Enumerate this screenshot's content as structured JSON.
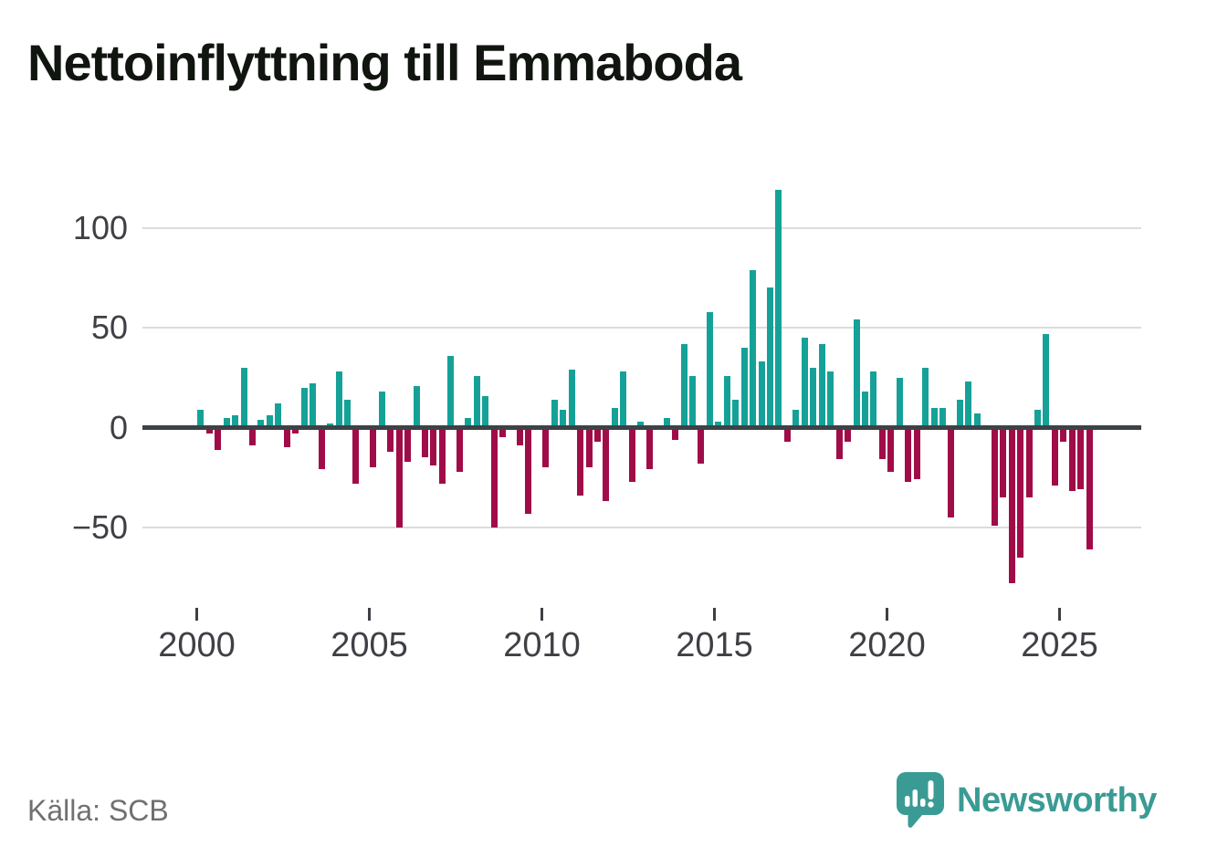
{
  "title": "Nettoinflyttning till Emmaboda",
  "source": "Källa: SCB",
  "brand": {
    "name": "Newsworthy",
    "logo_icon": "speech-bubble-bar-chart-icon"
  },
  "colors": {
    "positive_bar": "#16a198",
    "negative_bar": "#a00c48",
    "brand_teal": "#3a9b94",
    "axis_line": "#3d4247",
    "gridline": "#dcdcdc",
    "tick_text": "#3f4045",
    "title_text": "#10160f",
    "source_text": "#707070"
  },
  "chart_data": {
    "type": "bar",
    "title": "Nettoinflyttning till Emmaboda",
    "frequency": "quarterly",
    "start": "2000-Q1",
    "end": "2025-Q4",
    "xlabel": "",
    "ylabel": "",
    "grid": "horizontal",
    "y_ticks": [
      100,
      50,
      0,
      -50
    ],
    "ylim": [
      -85,
      125
    ],
    "x_tick_years": [
      2000,
      2005,
      2010,
      2015,
      2020,
      2025
    ],
    "x_tick_labels": [
      "2000",
      "2005",
      "2010",
      "2015",
      "2020",
      "2025"
    ],
    "values": [
      9,
      -3,
      -11,
      5,
      6,
      30,
      -9,
      4,
      6,
      12,
      -10,
      -3,
      20,
      22,
      -21,
      2,
      28,
      14,
      -28,
      0,
      -20,
      18,
      -12,
      -50,
      -17,
      21,
      -15,
      -19,
      -28,
      36,
      -22,
      5,
      26,
      16,
      -50,
      -5,
      0,
      -9,
      -43,
      0,
      -20,
      14,
      9,
      29,
      -34,
      -20,
      -7,
      -37,
      10,
      28,
      -27,
      3,
      -21,
      0,
      5,
      -6,
      42,
      26,
      -18,
      58,
      3,
      26,
      14,
      40,
      79,
      33,
      70,
      119,
      -7,
      9,
      45,
      30,
      42,
      28,
      -16,
      -7,
      54,
      18,
      28,
      -16,
      -22,
      25,
      -27,
      -26,
      30,
      10,
      10,
      -45,
      14,
      23,
      7,
      0,
      -49,
      -35,
      -78,
      -65,
      -35,
      9,
      47,
      -29,
      -7,
      -32,
      -31,
      -61
    ]
  }
}
